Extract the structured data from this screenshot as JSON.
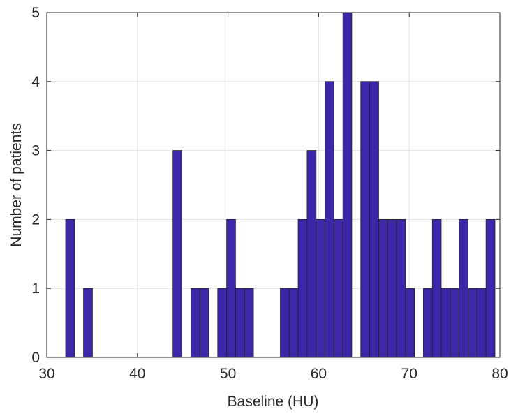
{
  "chart_data": {
    "type": "histogram",
    "xlabel": "Baseline (HU)",
    "ylabel": "Number of patients",
    "bins": [
      32.08,
      33.07,
      34.05,
      35.04,
      36.03,
      37.02,
      38.0,
      38.99,
      39.98,
      40.96,
      41.95,
      42.94,
      43.92,
      44.91,
      45.9,
      46.89,
      47.87,
      48.86,
      49.85,
      50.83,
      51.82,
      52.81,
      53.79,
      54.78,
      55.77,
      56.76,
      57.74,
      58.73,
      59.72,
      60.7,
      61.69,
      62.68,
      63.66,
      64.65,
      65.64,
      66.63,
      67.61,
      68.6,
      69.59,
      70.57,
      71.56,
      72.55,
      73.53,
      74.52,
      75.51,
      76.5,
      77.48,
      78.47,
      79.46
    ],
    "counts": [
      2,
      0,
      1,
      0,
      0,
      0,
      0,
      0,
      0,
      0,
      0,
      0,
      3,
      0,
      1,
      1,
      0,
      1,
      2,
      1,
      1,
      0,
      0,
      0,
      1,
      1,
      2,
      3,
      2,
      4,
      2,
      5,
      0,
      4,
      4,
      2,
      2,
      2,
      1,
      0,
      1,
      2,
      1,
      1,
      2,
      1,
      1,
      2
    ],
    "color": "#3d27a8",
    "xlim": [
      30,
      80
    ],
    "xticks": [
      30,
      40,
      50,
      60,
      70,
      80
    ],
    "ylim": [
      0,
      5
    ],
    "yticks": [
      0,
      1,
      2,
      3,
      4,
      5
    ],
    "grid": true
  }
}
